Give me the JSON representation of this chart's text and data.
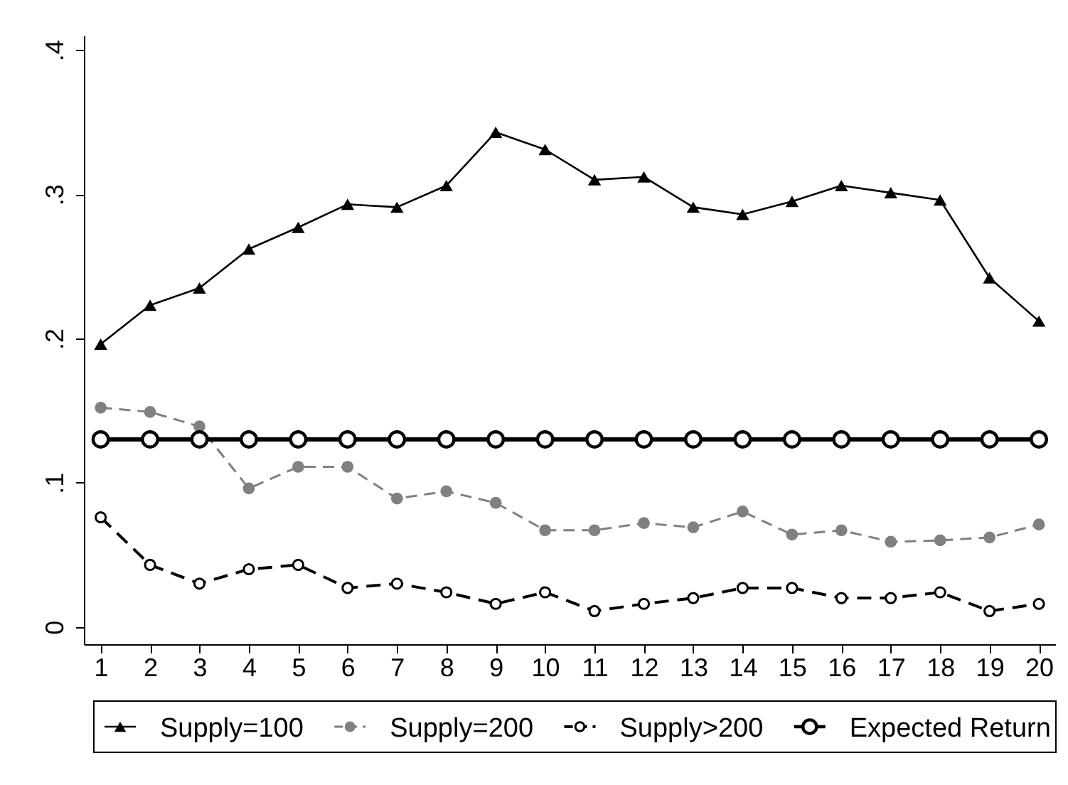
{
  "chart_data": {
    "type": "line",
    "x": [
      1,
      2,
      3,
      4,
      5,
      6,
      7,
      8,
      9,
      10,
      11,
      12,
      13,
      14,
      15,
      16,
      17,
      18,
      19,
      20
    ],
    "xlim": [
      0.66,
      20.33
    ],
    "xticks": [
      1,
      2,
      3,
      4,
      5,
      6,
      7,
      8,
      9,
      10,
      11,
      12,
      13,
      14,
      15,
      16,
      17,
      18,
      19,
      20
    ],
    "ylim": [
      -0.012,
      0.41
    ],
    "yticks": [
      0,
      {
        "value": 0.1,
        "label": ".1"
      },
      {
        "value": 0.2,
        "label": ".2"
      },
      {
        "value": 0.3,
        "label": ".3"
      },
      {
        "value": 0.4,
        "label": ".4"
      }
    ],
    "legend": "bottom",
    "series": [
      {
        "name": "Supply=100",
        "color": "#000000",
        "marker": "triangle",
        "line_style": "solid",
        "values": [
          0.196,
          0.223,
          0.235,
          0.262,
          0.277,
          0.293,
          0.291,
          0.306,
          0.343,
          0.331,
          0.31,
          0.312,
          0.291,
          0.286,
          0.295,
          0.306,
          0.301,
          0.296,
          0.242,
          0.212
        ]
      },
      {
        "name": "Supply=200",
        "color": "#808080",
        "marker": "circle",
        "line_style": "dashed",
        "values": [
          0.152,
          0.149,
          0.139,
          0.096,
          0.111,
          0.111,
          0.089,
          0.094,
          0.086,
          0.067,
          0.067,
          0.072,
          0.069,
          0.08,
          0.064,
          0.067,
          0.059,
          0.06,
          0.062,
          0.071
        ]
      },
      {
        "name": "Supply>200",
        "color": "#000000",
        "marker": "circle",
        "line_style": "dashed",
        "values": [
          0.076,
          0.043,
          0.03,
          0.04,
          0.043,
          0.027,
          0.03,
          0.024,
          0.016,
          0.024,
          0.011,
          0.016,
          0.02,
          0.027,
          0.027,
          0.02,
          0.02,
          0.024,
          0.011,
          0.016
        ]
      },
      {
        "name": "Expected Return",
        "color": "#000000",
        "marker": "circle",
        "line_style": "solid",
        "values": [
          0.13,
          0.13,
          0.13,
          0.13,
          0.13,
          0.13,
          0.13,
          0.13,
          0.13,
          0.13,
          0.13,
          0.13,
          0.13,
          0.13,
          0.13,
          0.13,
          0.13,
          0.13,
          0.13,
          0.13
        ]
      }
    ]
  }
}
